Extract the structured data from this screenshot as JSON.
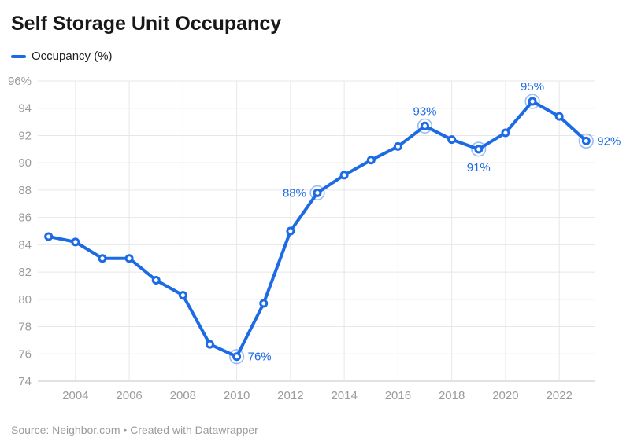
{
  "header": {
    "title": "Self Storage Unit Occupancy"
  },
  "legend": {
    "items": [
      {
        "label": "Occupancy (%)",
        "color": "#1d6ae5"
      }
    ]
  },
  "footer": {
    "source": "Source: Neighbor.com • Created with Datawrapper"
  },
  "colors": {
    "accent": "#1d6ae5",
    "halo": "#1d6ae5",
    "grid": "#e7e7e7",
    "baseline": "#c4c4c4",
    "axis_text": "#9b9b9b",
    "title_text": "#181818",
    "legend_text": "#1f1f1f",
    "marker_fill": "#ffffff"
  },
  "chart_data": {
    "type": "line",
    "title": "Self Storage Unit Occupancy",
    "xlabel": "",
    "ylabel": "",
    "legend_position": "top-left",
    "grid": true,
    "ylim": [
      74,
      96
    ],
    "xlim": [
      2003,
      2023
    ],
    "x": [
      2003,
      2004,
      2005,
      2006,
      2007,
      2008,
      2009,
      2010,
      2011,
      2012,
      2013,
      2014,
      2015,
      2016,
      2017,
      2018,
      2019,
      2020,
      2021,
      2022,
      2023
    ],
    "series": [
      {
        "name": "Occupancy (%)",
        "values": [
          84.6,
          84.2,
          83.0,
          83.0,
          81.4,
          80.3,
          76.7,
          75.8,
          79.7,
          85.0,
          87.8,
          89.1,
          90.2,
          91.2,
          92.7,
          91.7,
          91.0,
          92.2,
          94.5,
          93.4,
          91.6
        ]
      }
    ],
    "yticks": [
      74,
      76,
      78,
      80,
      82,
      84,
      86,
      88,
      90,
      92,
      94,
      96
    ],
    "ytick_labels": [
      "74",
      "76",
      "78",
      "80",
      "82",
      "84",
      "86",
      "88",
      "90",
      "92",
      "94",
      "96%"
    ],
    "xticks": [
      2004,
      2006,
      2008,
      2010,
      2012,
      2014,
      2016,
      2018,
      2020,
      2022
    ],
    "xtick_labels": [
      "2004",
      "2006",
      "2008",
      "2010",
      "2012",
      "2014",
      "2016",
      "2018",
      "2020",
      "2022"
    ],
    "annotations": [
      {
        "year": 2010,
        "text": "76%",
        "position": "right"
      },
      {
        "year": 2013,
        "text": "88%",
        "position": "left"
      },
      {
        "year": 2017,
        "text": "93%",
        "position": "above"
      },
      {
        "year": 2019,
        "text": "91%",
        "position": "below"
      },
      {
        "year": 2021,
        "text": "95%",
        "position": "above"
      },
      {
        "year": 2023,
        "text": "92%",
        "position": "right"
      }
    ]
  }
}
